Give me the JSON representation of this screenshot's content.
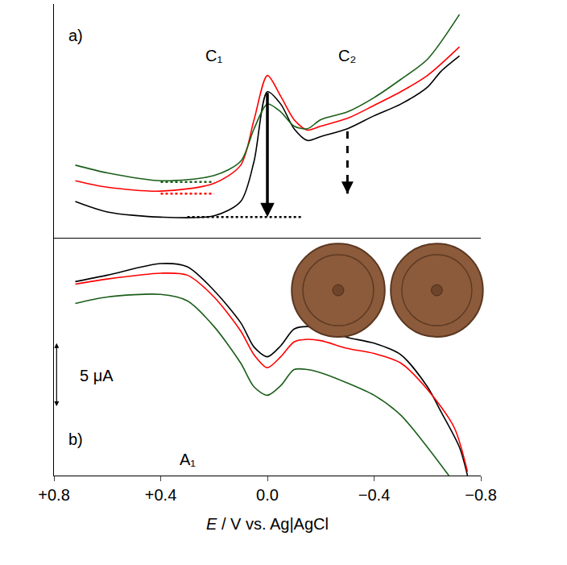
{
  "chart_data": [
    {
      "type": "line",
      "xlim": [
        0.8,
        -0.8
      ],
      "xticks": [
        {
          "value": 0.8,
          "label": "+0.8"
        },
        {
          "value": 0.4,
          "label": "+0.4"
        },
        {
          "value": 0.0,
          "label": "0.0"
        },
        {
          "value": -0.4,
          "label": "−0.4"
        },
        {
          "value": -0.8,
          "label": "−0.8"
        }
      ],
      "ylim": [
        0,
        18
      ],
      "tick_labels": false,
      "grid": false,
      "series": [
        {
          "color": "#000000",
          "line_style": "solid",
          "x": [
            0.72,
            0.6,
            0.4,
            0.2,
            0.1,
            0.05,
            0.0,
            -0.05,
            -0.1,
            -0.15,
            -0.2,
            -0.3,
            -0.4,
            -0.5,
            -0.6,
            -0.65,
            -0.72
          ],
          "values": [
            2.8,
            2.0,
            1.6,
            1.7,
            2.8,
            5.9,
            11.25,
            10.3,
            8.4,
            7.5,
            7.8,
            8.4,
            9.4,
            10.3,
            11.6,
            12.8,
            14.0
          ]
        },
        {
          "color": "#ff0000",
          "line_style": "solid",
          "x": [
            0.72,
            0.6,
            0.4,
            0.2,
            0.1,
            0.05,
            0.0,
            -0.05,
            -0.1,
            -0.15,
            -0.2,
            -0.3,
            -0.4,
            -0.5,
            -0.6,
            -0.72
          ],
          "values": [
            4.4,
            3.9,
            3.6,
            4.2,
            5.6,
            9.1,
            12.5,
            10.9,
            9.1,
            8.3,
            8.6,
            9.2,
            10.2,
            11.25,
            12.5,
            14.7
          ]
        },
        {
          "color": "#1a5e1a",
          "line_style": "solid",
          "x": [
            0.72,
            0.6,
            0.4,
            0.2,
            0.1,
            0.05,
            0.0,
            -0.05,
            -0.1,
            -0.15,
            -0.2,
            -0.3,
            -0.4,
            -0.5,
            -0.6,
            -0.72
          ],
          "values": [
            5.6,
            5.0,
            4.4,
            4.8,
            5.9,
            8.4,
            10.3,
            9.7,
            8.6,
            8.4,
            9.1,
            9.7,
            10.8,
            12.2,
            13.75,
            17.2
          ]
        }
      ],
      "baselines": [
        {
          "x": [
            0.3,
            -0.13
          ],
          "y": 1.6,
          "color": "#000000",
          "line_style": "dotted"
        },
        {
          "x": [
            0.4,
            0.2
          ],
          "y": 3.4,
          "color": "#ff0000",
          "line_style": "dotted"
        },
        {
          "x": [
            0.4,
            0.2
          ],
          "y": 4.3,
          "color": "#1a5e1a",
          "line_style": "dotted"
        }
      ],
      "arrows": [
        {
          "x": 0.0,
          "y_from": 11.25,
          "y_to": 1.6,
          "line_style": "solid"
        },
        {
          "x": -0.3,
          "y_from": 8.2,
          "y_to": 3.4,
          "line_style": "dashed"
        }
      ],
      "annotations": [
        {
          "text": "a)",
          "x": 0.72,
          "y": 15.6
        },
        {
          "text": "C₁",
          "x": 0.2,
          "y": 14.0
        },
        {
          "text": "C₂",
          "x": -0.3,
          "y": 14.0
        }
      ]
    },
    {
      "type": "line",
      "xlabel": "E / V vs. Ag|AgCl",
      "xlim": [
        0.8,
        -0.8
      ],
      "xticks": [
        {
          "value": 0.8,
          "label": "+0.8"
        },
        {
          "value": 0.4,
          "label": "+0.4"
        },
        {
          "value": 0.0,
          "label": "0.0"
        },
        {
          "value": -0.4,
          "label": "−0.4"
        },
        {
          "value": -0.8,
          "label": "−0.8"
        }
      ],
      "ylim": [
        0,
        18.5
      ],
      "tick_labels": "x",
      "grid": false,
      "series": [
        {
          "color": "#000000",
          "line_style": "solid",
          "x": [
            0.72,
            0.6,
            0.4,
            0.3,
            0.2,
            0.1,
            0.05,
            0.0,
            -0.05,
            -0.1,
            -0.15,
            -0.2,
            -0.3,
            -0.4,
            -0.5,
            -0.6,
            -0.65,
            -0.72,
            -0.75
          ],
          "values": [
            15.1,
            15.6,
            16.5,
            16.25,
            14.4,
            11.9,
            10.0,
            9.25,
            10.1,
            11.4,
            11.6,
            11.4,
            10.75,
            10.3,
            9.4,
            6.9,
            5.0,
            2.2,
            0.0
          ]
        },
        {
          "color": "#ff0000",
          "line_style": "solid",
          "x": [
            0.72,
            0.6,
            0.4,
            0.3,
            0.2,
            0.1,
            0.05,
            0.0,
            -0.05,
            -0.1,
            -0.15,
            -0.2,
            -0.3,
            -0.4,
            -0.5,
            -0.6,
            -0.7,
            -0.75
          ],
          "values": [
            14.9,
            15.3,
            15.75,
            15.6,
            13.9,
            11.25,
            9.4,
            8.4,
            9.25,
            10.4,
            10.6,
            10.5,
            9.9,
            9.5,
            8.75,
            6.7,
            3.75,
            0.3
          ]
        },
        {
          "color": "#1a5e1a",
          "line_style": "solid",
          "x": [
            0.72,
            0.6,
            0.4,
            0.3,
            0.2,
            0.1,
            0.05,
            0.0,
            -0.05,
            -0.1,
            -0.15,
            -0.2,
            -0.3,
            -0.4,
            -0.5,
            -0.6,
            -0.68
          ],
          "values": [
            13.4,
            13.9,
            14.1,
            13.6,
            11.6,
            8.75,
            6.9,
            6.25,
            7.0,
            8.25,
            8.25,
            8.0,
            7.2,
            6.25,
            4.7,
            2.2,
            0.0
          ]
        }
      ],
      "scale_bar": {
        "x": 0.79,
        "y0": 5.3,
        "length": 5,
        "label": "5 μA",
        "label_x": 0.64
      },
      "annotations": [
        {
          "text": "b)",
          "x": 0.72,
          "y": 2.8
        },
        {
          "text": "A₁",
          "x": 0.3,
          "y": 1.25
        }
      ]
    }
  ]
}
